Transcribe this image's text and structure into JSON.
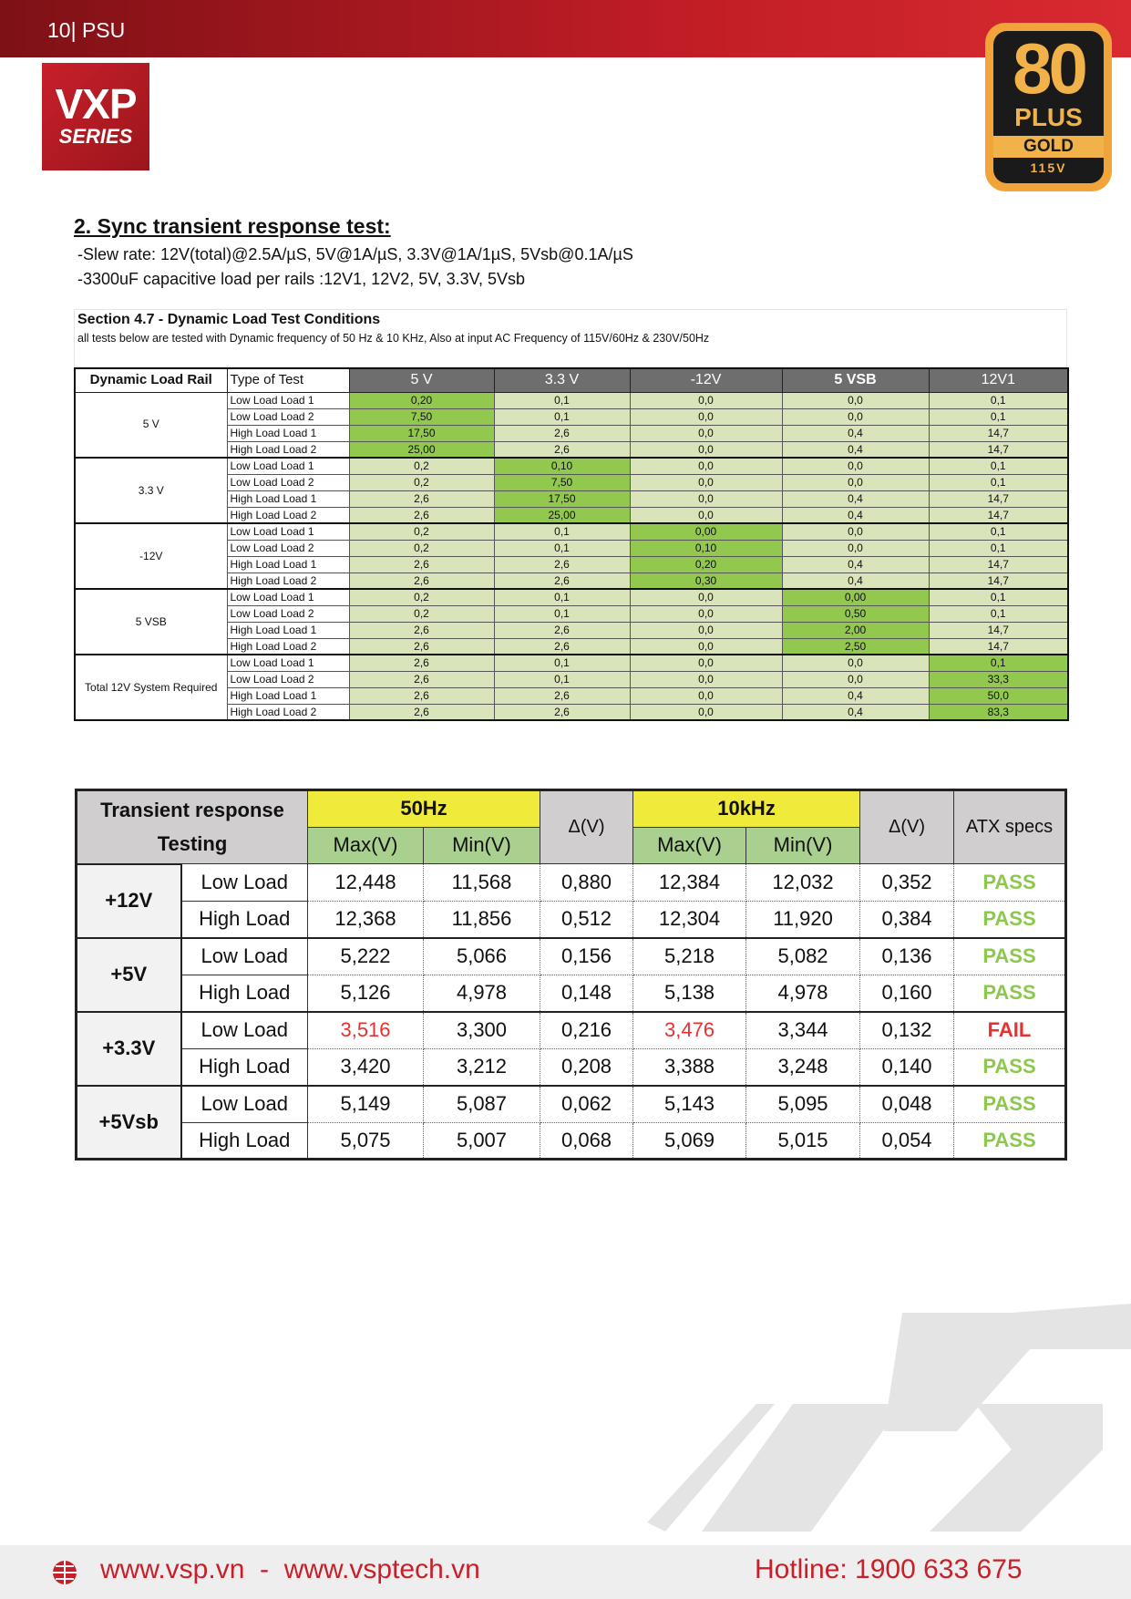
{
  "header": {
    "page_label": "10| PSU",
    "logo_main": "VXP",
    "logo_sub": "SERIES",
    "badge": {
      "number": "80",
      "plus": "PLUS",
      "grade": "GOLD",
      "voltage": "115V"
    }
  },
  "section": {
    "title": "2. Sync transient response test:",
    "lines": [
      "-Slew rate: 12V(total)@2.5A/µS, 5V@1A/µS, 3.3V@1A/1µS, 5Vsb@0.1A/µS",
      "-3300uF capacitive load per rails :12V1, 12V2, 5V, 3.3V, 5Vsb"
    ]
  },
  "table1": {
    "title": "Section 4.7 - Dynamic Load Test Conditions",
    "note": "all tests below are tested with Dynamic frequency of 50 Hz & 10 KHz,  Also at input AC Frequency of 115V/60Hz & 230V/50Hz",
    "headers": [
      "Dynamic Load Rail",
      "Type of Test",
      "5 V",
      "3.3 V",
      "-12V",
      "5 VSB",
      "12V1"
    ],
    "groups": [
      {
        "rail": "5 V",
        "rows": [
          {
            "test": "Low Load Load 1",
            "values": [
              "0,20",
              "0,1",
              "0,0",
              "0,0",
              "0,1"
            ]
          },
          {
            "test": "Low Load Load 2",
            "values": [
              "7,50",
              "0,1",
              "0,0",
              "0,0",
              "0,1"
            ]
          },
          {
            "test": "High Load Load 1",
            "values": [
              "17,50",
              "2,6",
              "0,0",
              "0,4",
              "14,7"
            ]
          },
          {
            "test": "High Load Load 2",
            "values": [
              "25,00",
              "2,6",
              "0,0",
              "0,4",
              "14,7"
            ]
          }
        ]
      },
      {
        "rail": "3.3 V",
        "rows": [
          {
            "test": "Low Load Load 1",
            "values": [
              "0,2",
              "0,10",
              "0,0",
              "0,0",
              "0,1"
            ]
          },
          {
            "test": "Low Load Load 2",
            "values": [
              "0,2",
              "7,50",
              "0,0",
              "0,0",
              "0,1"
            ]
          },
          {
            "test": "High Load Load 1",
            "values": [
              "2,6",
              "17,50",
              "0,0",
              "0,4",
              "14,7"
            ]
          },
          {
            "test": "High Load Load 2",
            "values": [
              "2,6",
              "25,00",
              "0,0",
              "0,4",
              "14,7"
            ]
          }
        ]
      },
      {
        "rail": "-12V",
        "rows": [
          {
            "test": "Low Load Load 1",
            "values": [
              "0,2",
              "0,1",
              "0,00",
              "0,0",
              "0,1"
            ]
          },
          {
            "test": "Low Load Load 2",
            "values": [
              "0,2",
              "0,1",
              "0,10",
              "0,0",
              "0,1"
            ]
          },
          {
            "test": "High Load Load 1",
            "values": [
              "2,6",
              "2,6",
              "0,20",
              "0,4",
              "14,7"
            ]
          },
          {
            "test": "High Load Load 2",
            "values": [
              "2,6",
              "2,6",
              "0,30",
              "0,4",
              "14,7"
            ]
          }
        ]
      },
      {
        "rail": "5 VSB",
        "rows": [
          {
            "test": "Low Load Load 1",
            "values": [
              "0,2",
              "0,1",
              "0,0",
              "0,00",
              "0,1"
            ]
          },
          {
            "test": "Low Load Load 2",
            "values": [
              "0,2",
              "0,1",
              "0,0",
              "0,50",
              "0,1"
            ]
          },
          {
            "test": "High Load Load 1",
            "values": [
              "2,6",
              "2,6",
              "0,0",
              "2,00",
              "14,7"
            ]
          },
          {
            "test": "High Load Load 2",
            "values": [
              "2,6",
              "2,6",
              "0,0",
              "2,50",
              "14,7"
            ]
          }
        ]
      },
      {
        "rail": "Total 12V System Required",
        "rows": [
          {
            "test": "Low Load Load 1",
            "values": [
              "2,6",
              "0,1",
              "0,0",
              "0,0",
              "0,1"
            ]
          },
          {
            "test": "Low Load Load 2",
            "values": [
              "2,6",
              "0,1",
              "0,0",
              "0,0",
              "33,3"
            ]
          },
          {
            "test": "High Load Load 1",
            "values": [
              "2,6",
              "2,6",
              "0,0",
              "0,4",
              "50,0"
            ]
          },
          {
            "test": "High Load Load 2",
            "values": [
              "2,6",
              "2,6",
              "0,0",
              "0,4",
              "83,3"
            ]
          }
        ]
      }
    ]
  },
  "table2": {
    "title_lines": [
      "Transient response",
      "Testing"
    ],
    "freq": [
      "50Hz",
      "10kHz"
    ],
    "sub": [
      "Max(V)",
      "Min(V)"
    ],
    "delta": "Δ(V)",
    "spec": "ATX specs",
    "warn_color": "#e8302f",
    "groups": [
      {
        "rail": "+12V",
        "rows": [
          {
            "load": "Low Load",
            "values": [
              "12,448",
              "11,568",
              "0,880",
              "12,384",
              "12,032",
              "0,352"
            ],
            "result": "PASS",
            "result_color": "#8cc84b"
          },
          {
            "load": "High Load",
            "values": [
              "12,368",
              "11,856",
              "0,512",
              "12,304",
              "11,920",
              "0,384"
            ],
            "result": "PASS",
            "result_color": "#8cc84b"
          }
        ]
      },
      {
        "rail": "+5V",
        "rows": [
          {
            "load": "Low Load",
            "values": [
              "5,222",
              "5,066",
              "0,156",
              "5,218",
              "5,082",
              "0,136"
            ],
            "result": "PASS",
            "result_color": "#8cc84b"
          },
          {
            "load": "High Load",
            "values": [
              "5,126",
              "4,978",
              "0,148",
              "5,138",
              "4,978",
              "0,160"
            ],
            "result": "PASS",
            "result_color": "#8cc84b"
          }
        ]
      },
      {
        "rail": "+3.3V",
        "rows": [
          {
            "load": "Low Load",
            "values": [
              "3,516",
              "3,300",
              "0,216",
              "3,476",
              "3,344",
              "0,132"
            ],
            "warn": [
              0,
              3
            ],
            "result": "FAIL",
            "result_color": "#e8302f"
          },
          {
            "load": "High Load",
            "values": [
              "3,420",
              "3,212",
              "0,208",
              "3,388",
              "3,248",
              "0,140"
            ],
            "result": "PASS",
            "result_color": "#8cc84b"
          }
        ]
      },
      {
        "rail": "+5Vsb",
        "rows": [
          {
            "load": "Low Load",
            "values": [
              "5,149",
              "5,087",
              "0,062",
              "5,143",
              "5,095",
              "0,048"
            ],
            "result": "PASS",
            "result_color": "#8cc84b"
          },
          {
            "load": "High Load",
            "values": [
              "5,075",
              "5,007",
              "0,068",
              "5,069",
              "5,015",
              "0,054"
            ],
            "result": "PASS",
            "result_color": "#8cc84b"
          }
        ]
      }
    ]
  },
  "footer": {
    "websites": "www.vsp.vn  -  www.vsptech.vn",
    "hotline": "Hotline: 1900 633 675"
  }
}
